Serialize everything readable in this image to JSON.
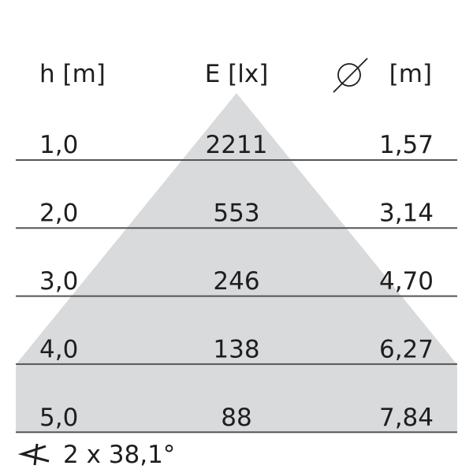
{
  "headers": {
    "height": "h [m]",
    "illuminance": "E [lx]",
    "diameter_unit": "[m]",
    "diameter_icon": "diameter-icon"
  },
  "rows": [
    {
      "h": "1,0",
      "e": "2211",
      "d": "1,57"
    },
    {
      "h": "2,0",
      "e": "553",
      "d": "3,14"
    },
    {
      "h": "3,0",
      "e": "246",
      "d": "4,70"
    },
    {
      "h": "4,0",
      "e": "138",
      "d": "6,27"
    },
    {
      "h": "5,0",
      "e": "88",
      "d": "7,84"
    }
  ],
  "beam_angle": {
    "icon": "angle-icon",
    "text": "2 x 38,1°"
  },
  "colors": {
    "cone": "#d9dadc",
    "lines": "#555555",
    "text": "#1e1e1e"
  }
}
